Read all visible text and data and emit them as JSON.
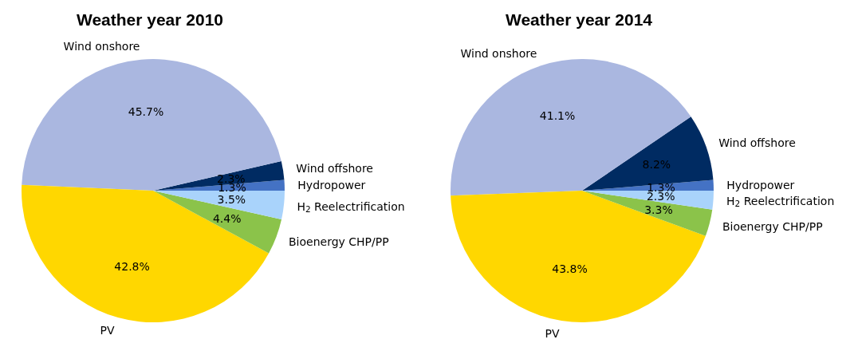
{
  "chart_data": [
    {
      "type": "pie",
      "title": "Weather year 2010",
      "categories": [
        "Hydropower",
        "Wind offshore",
        "Wind onshore",
        "PV",
        "Bioenergy CHP/PP",
        "H$_{2}$ Reelectrification"
      ],
      "values": [
        1.3,
        2.3,
        45.7,
        42.8,
        4.4,
        3.5
      ],
      "value_labels": [
        "1.3%",
        "2.3%",
        "45.7%",
        "42.8%",
        "4.4%",
        "3.5%"
      ],
      "colors": [
        "#4472c4",
        "#002b62",
        "#aab7e0",
        "#ffd700",
        "#8bc34a",
        "#a9d3fb"
      ]
    },
    {
      "type": "pie",
      "title": "Weather year 2014",
      "categories": [
        "Hydropower",
        "Wind offshore",
        "Wind onshore",
        "PV",
        "Bioenergy CHP/PP",
        "H$_{2}$ Reelectrification"
      ],
      "values": [
        1.3,
        8.2,
        41.1,
        43.8,
        3.3,
        2.3
      ],
      "value_labels": [
        "1.3%",
        "8.2%",
        "41.1%",
        "43.8%",
        "3.3%",
        "2.3%"
      ],
      "colors": [
        "#4472c4",
        "#002b62",
        "#aab7e0",
        "#ffd700",
        "#8bc34a",
        "#a9d3fb"
      ]
    }
  ]
}
